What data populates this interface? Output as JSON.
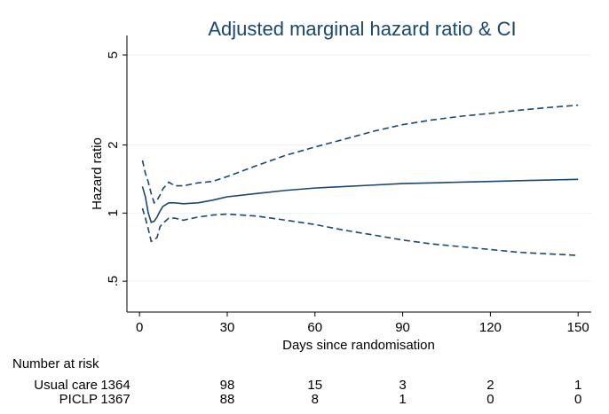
{
  "chart_data": {
    "type": "line",
    "title": "Adjusted marginal hazard ratio & CI",
    "x_label": "Days since randomisation",
    "y_label": "Hazard ratio",
    "log_y": true,
    "grid": true,
    "x": [
      1,
      2,
      3,
      4,
      5,
      6,
      7,
      8,
      10,
      12,
      15,
      20,
      25,
      30,
      40,
      50,
      60,
      70,
      80,
      90,
      100,
      110,
      120,
      130,
      140,
      150
    ],
    "series": [
      {
        "color": "#1a476f",
        "dash": false,
        "values": [
          1.31,
          1.18,
          1.0,
          0.91,
          0.92,
          0.96,
          1.02,
          1.07,
          1.11,
          1.11,
          1.1,
          1.11,
          1.14,
          1.18,
          1.22,
          1.26,
          1.29,
          1.31,
          1.33,
          1.35,
          1.36,
          1.37,
          1.38,
          1.39,
          1.4,
          1.41
        ]
      },
      {
        "color": "#1a476f",
        "dash": true,
        "values": [
          1.71,
          1.5,
          1.37,
          1.22,
          1.11,
          1.14,
          1.2,
          1.28,
          1.37,
          1.32,
          1.32,
          1.36,
          1.38,
          1.45,
          1.62,
          1.8,
          1.96,
          2.12,
          2.3,
          2.46,
          2.58,
          2.68,
          2.76,
          2.85,
          2.93,
          3.0
        ]
      },
      {
        "color": "#1a476f",
        "dash": true,
        "values": [
          1.05,
          0.95,
          0.85,
          0.75,
          0.76,
          0.78,
          0.87,
          0.9,
          0.95,
          0.95,
          0.93,
          0.96,
          0.98,
          0.99,
          0.97,
          0.93,
          0.89,
          0.84,
          0.8,
          0.76,
          0.73,
          0.71,
          0.69,
          0.67,
          0.66,
          0.65
        ]
      }
    ],
    "xlim": [
      -4.3,
      154.5
    ],
    "xticks": [
      0,
      30,
      60,
      90,
      120,
      150
    ],
    "ylim": [
      0.365,
      6.1
    ],
    "yticks": [
      {
        "value": 0.5,
        "label": ".5"
      },
      1,
      2,
      5
    ],
    "risk_table": {
      "title": "Number at risk",
      "rows": [
        {
          "label": "Usual care",
          "values": [
            1364,
            98,
            15,
            3,
            2,
            1
          ]
        },
        {
          "label": "PICLP",
          "values": [
            1367,
            88,
            8,
            1,
            0,
            0
          ]
        }
      ]
    }
  }
}
